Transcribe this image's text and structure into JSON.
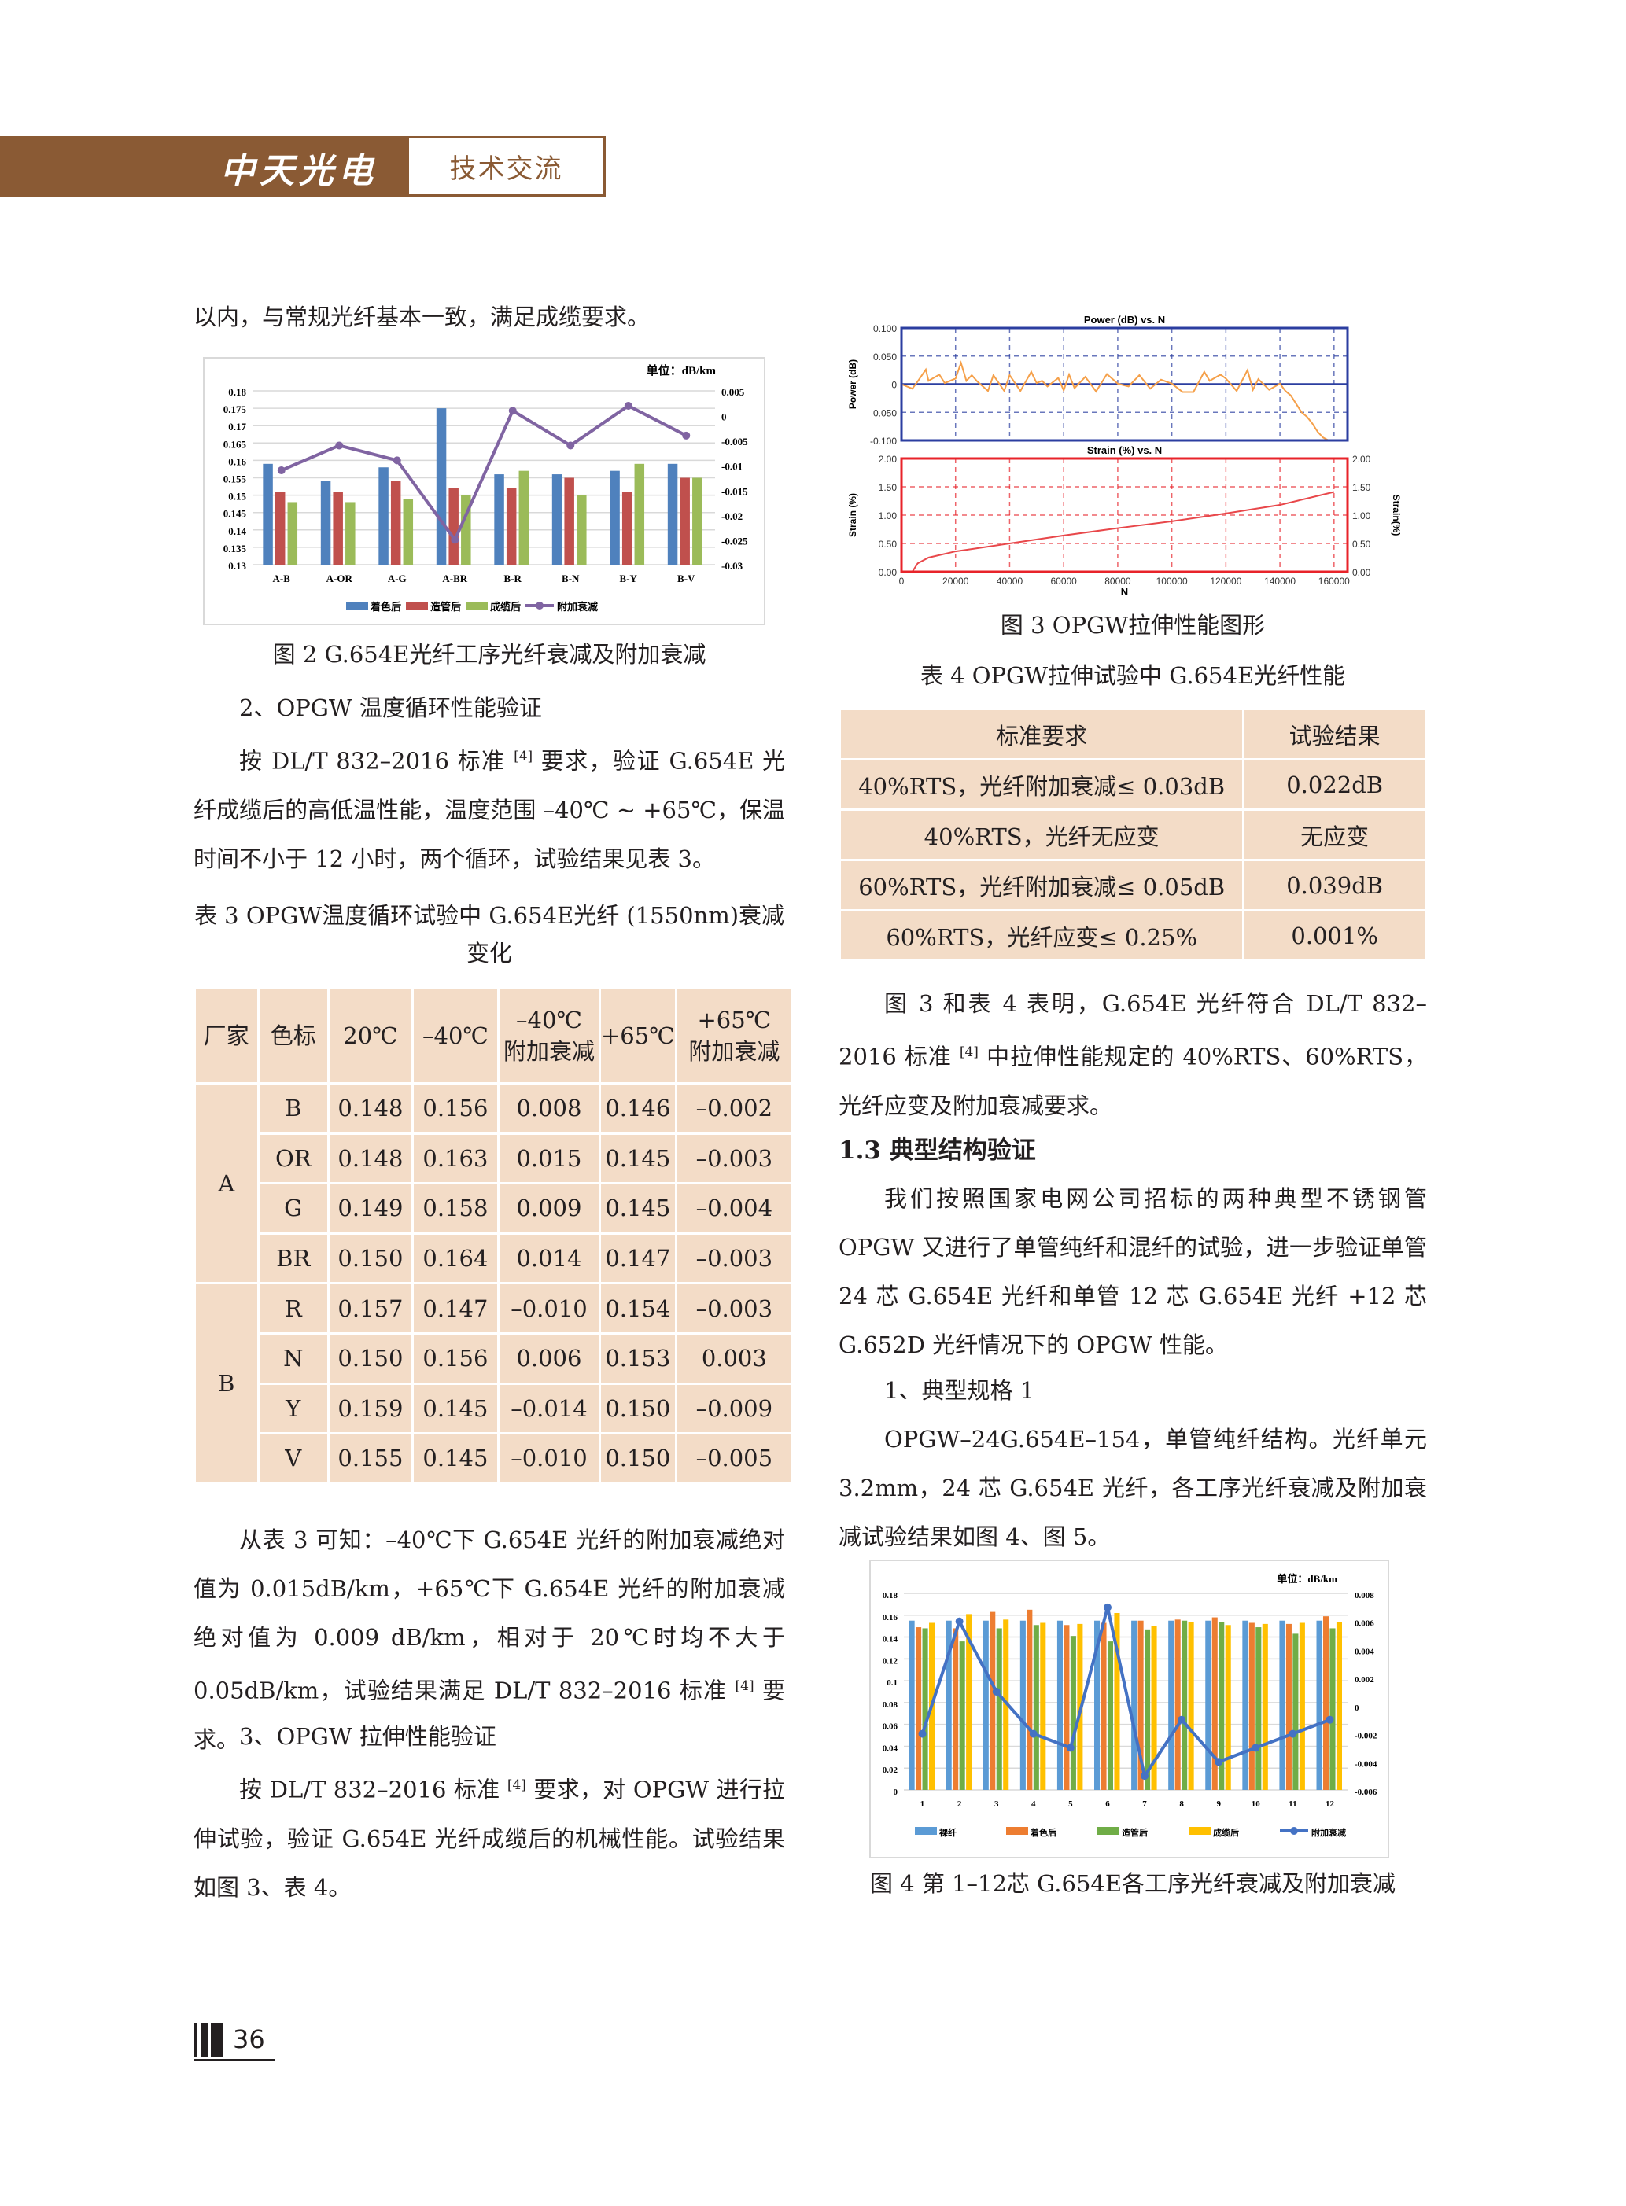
{
  "header": {
    "logo": "中天光电",
    "section": "技术交流"
  },
  "left": {
    "p0": "以内，与常规光纤基本一致，满足成缆要求。",
    "fig2_caption": "图 2 G.654E光纤工序光纤衰减及附加衰减",
    "h_temp": "2、OPGW 温度循环性能验证",
    "p_temp_a": "按 DL/T 832–2016 标准",
    "ref": "[4]",
    "p_temp_b": "要求，验证 G.654E 光纤成缆后的高低温性能，温度范围 –40℃ ~ +65℃，保温时间不小于 12 小时，两个循环，试验结果见表 3。",
    "table3_caption": "表 3 OPGW温度循环试验中 G.654E光纤 (1550nm)衰减变化",
    "p_res_a": "从表 3 可知：–40℃下 G.654E 光纤的附加衰减绝对值为 0.015dB/km，+65℃下 G.654E 光纤的附加衰减绝对值为 0.009 dB/km，相对于 20℃时均不大于 0.05dB/km，试验结果满足 DL/T 832–2016 标准",
    "p_res_b": "要求。",
    "h_tensile": "3、OPGW 拉伸性能验证",
    "p_ten_a": "按 DL/T 832–2016 标准",
    "p_ten_b": "要求，对 OPGW 进行拉伸试验，验证 G.654E 光纤成缆后的机械性能。试验结果如图 3、表 4。"
  },
  "table3": {
    "headers": [
      "厂家",
      "色标",
      "20℃",
      "–40℃",
      "–40℃\n附加衰减",
      "+65℃",
      "+65℃\n附加衰减"
    ],
    "groups": [
      {
        "vendor": "A",
        "rows": [
          [
            "B",
            "0.148",
            "0.156",
            "0.008",
            "0.146",
            "–0.002"
          ],
          [
            "OR",
            "0.148",
            "0.163",
            "0.015",
            "0.145",
            "–0.003"
          ],
          [
            "G",
            "0.149",
            "0.158",
            "0.009",
            "0.145",
            "–0.004"
          ],
          [
            "BR",
            "0.150",
            "0.164",
            "0.014",
            "0.147",
            "–0.003"
          ]
        ]
      },
      {
        "vendor": "B",
        "rows": [
          [
            "R",
            "0.157",
            "0.147",
            "–0.010",
            "0.154",
            "–0.003"
          ],
          [
            "N",
            "0.150",
            "0.156",
            "0.006",
            "0.153",
            "0.003"
          ],
          [
            "Y",
            "0.159",
            "0.145",
            "–0.014",
            "0.150",
            "–0.009"
          ],
          [
            "V",
            "0.155",
            "0.145",
            "–0.010",
            "0.150",
            "–0.005"
          ]
        ]
      }
    ]
  },
  "right": {
    "fig3_caption": "图 3 OPGW拉伸性能图形",
    "table4_caption": "表 4 OPGW拉伸试验中 G.654E光纤性能",
    "p_t4_a": "图 3 和表 4 表明，G.654E 光纤符合 DL/T 832–2016 标准",
    "p_t4_b": "中拉伸性能规定的 40%RTS、60%RTS，光纤应变及附加衰减要求。",
    "h13": "1.3 典型结构验证",
    "p13": "我们按照国家电网公司招标的两种典型不锈钢管 OPGW 又进行了单管纯纤和混纤的试验，进一步验证单管 24 芯 G.654E 光纤和单管 12 芯 G.654E 光纤 +12 芯 G.652D 光纤情况下的 OPGW 性能。",
    "h_spec1": "1、典型规格 1",
    "p_spec1": "OPGW–24G.654E–154，单管纯纤结构。光纤单元 3.2mm，24 芯 G.654E 光纤，各工序光纤衰减及附加衰减试验结果如图 4、图 5。",
    "fig4_caption": "图 4 第 1–12芯 G.654E各工序光纤衰减及附加衰减"
  },
  "table4": {
    "headers": [
      "标准要求",
      "试验结果"
    ],
    "rows": [
      [
        "40%RTS，光纤附加衰减≤ 0.03dB",
        "0.022dB"
      ],
      [
        "40%RTS，光纤无应变",
        "无应变"
      ],
      [
        "60%RTS，光纤附加衰减≤ 0.05dB",
        "0.039dB"
      ],
      [
        "60%RTS，光纤应变≤ 0.25%",
        "0.001%"
      ]
    ]
  },
  "footer": {
    "page_number": "36"
  },
  "colors": {
    "brand": "#8a5a34",
    "table_fill": "#f3dcc7"
  },
  "chart_data": [
    {
      "id": "fig2",
      "type": "bar+line",
      "unit_label": "单位：dB/km",
      "categories": [
        "A-B",
        "A-OR",
        "A-G",
        "A-BR",
        "B-R",
        "B-N",
        "B-Y",
        "B-V"
      ],
      "series": [
        {
          "name": "着色后",
          "type": "bar",
          "axis": "left",
          "color": "#4f81bd",
          "values": [
            0.159,
            0.154,
            0.158,
            0.175,
            0.156,
            0.156,
            0.157,
            0.159
          ]
        },
        {
          "name": "造管后",
          "type": "bar",
          "axis": "left",
          "color": "#c0504d",
          "values": [
            0.151,
            0.151,
            0.154,
            0.152,
            0.152,
            0.155,
            0.151,
            0.155
          ]
        },
        {
          "name": "成缆后",
          "type": "bar",
          "axis": "left",
          "color": "#9bbb59",
          "values": [
            0.148,
            0.148,
            0.149,
            0.15,
            0.157,
            0.15,
            0.159,
            0.155
          ]
        },
        {
          "name": "附加衰减",
          "type": "line",
          "axis": "right",
          "color": "#8064a2",
          "values": [
            -0.011,
            -0.006,
            -0.009,
            -0.025,
            0.001,
            -0.006,
            0.002,
            -0.004
          ]
        }
      ],
      "ylim": [
        0.13,
        0.18
      ],
      "yticks": [
        "0.13",
        "0.135",
        "0.14",
        "0.145",
        "0.15",
        "0.155",
        "0.16",
        "0.165",
        "0.17",
        "0.175",
        "0.18"
      ],
      "y2lim": [
        -0.03,
        0.005
      ],
      "y2ticks": [
        "-0.03",
        "-0.025",
        "-0.02",
        "-0.015",
        "-0.01",
        "-0.005",
        "0",
        "0.005"
      ],
      "grid": true,
      "legend": "bottom"
    },
    {
      "id": "fig3_power",
      "type": "line",
      "title": "Power (dB) vs. N",
      "ylabel": "Power (dB)",
      "ylim": [
        -0.1,
        0.1
      ],
      "yticks": [
        "-0.100",
        "-0.050",
        "0",
        "0.050",
        "0.100"
      ],
      "xlim": [
        0,
        165000
      ],
      "color": "#f5a04a",
      "frame_color": "#2b3ea0",
      "x": [
        0,
        4000,
        6000,
        9000,
        10000,
        14000,
        16000,
        20000,
        22000,
        24000,
        26000,
        28000,
        32000,
        34000,
        38000,
        40000,
        44000,
        48000,
        50000,
        52000,
        54000,
        58000,
        60000,
        62000,
        64000,
        68000,
        72000,
        76000,
        80000,
        84000,
        88000,
        92000,
        96000,
        100000,
        104000,
        108000,
        112000,
        114000,
        118000,
        120000,
        124000,
        128000,
        130000,
        132000,
        136000,
        140000,
        142000,
        144000,
        146000,
        148000,
        150000,
        152000,
        154000,
        156000,
        158000,
        160000,
        165000
      ],
      "y": [
        0,
        -0.008,
        0.005,
        0.026,
        0.006,
        0.017,
        0.002,
        0.01,
        0.038,
        0.006,
        0.016,
        0.005,
        -0.012,
        0.016,
        -0.012,
        0.016,
        -0.012,
        0.022,
        0.002,
        0.006,
        -0.004,
        0.011,
        -0.011,
        0.017,
        -0.007,
        0.013,
        -0.013,
        0.018,
        0.001,
        -0.004,
        0.016,
        -0.008,
        0.008,
        0.001,
        -0.014,
        -0.014,
        0.022,
        0.006,
        0.017,
        0.01,
        -0.012,
        0.025,
        -0.01,
        0.009,
        -0.01,
        0.001,
        -0.012,
        -0.02,
        -0.035,
        -0.05,
        -0.058,
        -0.07,
        -0.085,
        -0.095,
        -0.1,
        -0.1,
        -0.1
      ]
    },
    {
      "id": "fig3_strain",
      "type": "line",
      "title": "Strain (%) vs. N",
      "ylabel": "Strain (%)",
      "y2label": "Strain(%)",
      "xlabel": "N",
      "ylim": [
        0,
        2
      ],
      "yticks": [
        "0.00",
        "0.50",
        "1.00",
        "1.50",
        "2.00"
      ],
      "xlim": [
        0,
        165000
      ],
      "xticks": [
        "0",
        "20000",
        "40000",
        "60000",
        "80000",
        "100000",
        "120000",
        "140000",
        "160000"
      ],
      "color": "#e8474a",
      "frame_color": "#e8232a",
      "x": [
        4000,
        6000,
        10000,
        20000,
        40000,
        60000,
        80000,
        100000,
        120000,
        140000,
        160000
      ],
      "y": [
        0,
        0.15,
        0.25,
        0.36,
        0.5,
        0.64,
        0.77,
        0.89,
        1.03,
        1.18,
        1.41
      ]
    },
    {
      "id": "fig4",
      "type": "bar+line",
      "unit_label": "单位：dB/km",
      "categories": [
        "1",
        "2",
        "3",
        "4",
        "5",
        "6",
        "7",
        "8",
        "9",
        "10",
        "11",
        "12"
      ],
      "series": [
        {
          "name": "裸纤",
          "type": "bar",
          "axis": "left",
          "color": "#5b9bd5",
          "values": [
            0.155,
            0.155,
            0.155,
            0.155,
            0.155,
            0.155,
            0.155,
            0.155,
            0.155,
            0.155,
            0.155,
            0.155
          ]
        },
        {
          "name": "着色后",
          "type": "bar",
          "axis": "left",
          "color": "#ed7d31",
          "values": [
            0.149,
            0.148,
            0.163,
            0.165,
            0.151,
            0.153,
            0.155,
            0.156,
            0.158,
            0.153,
            0.152,
            0.159
          ]
        },
        {
          "name": "造管后",
          "type": "bar",
          "axis": "left",
          "color": "#70ad47",
          "values": [
            0.148,
            0.136,
            0.148,
            0.151,
            0.141,
            0.136,
            0.147,
            0.155,
            0.154,
            0.149,
            0.143,
            0.148
          ]
        },
        {
          "name": "成缆后",
          "type": "bar",
          "axis": "left",
          "color": "#ffc000",
          "values": [
            0.153,
            0.161,
            0.156,
            0.153,
            0.152,
            0.162,
            0.15,
            0.154,
            0.151,
            0.152,
            0.153,
            0.154
          ]
        },
        {
          "name": "附加衰减",
          "type": "line",
          "axis": "right",
          "color": "#4472c4",
          "values": [
            -0.002,
            0.006,
            0.001,
            -0.002,
            -0.003,
            0.007,
            -0.005,
            -0.001,
            -0.004,
            -0.003,
            -0.002,
            -0.001
          ]
        }
      ],
      "ylim": [
        0,
        0.18
      ],
      "yticks": [
        "0",
        "0.02",
        "0.04",
        "0.06",
        "0.08",
        "0.1",
        "0.12",
        "0.14",
        "0.16",
        "0.18"
      ],
      "y2lim": [
        -0.006,
        0.008
      ],
      "y2ticks": [
        "-0.006",
        "-0.004",
        "-0.002",
        "0",
        "0.002",
        "0.004",
        "0.006",
        "0.008"
      ],
      "grid": true,
      "legend": "bottom"
    }
  ]
}
